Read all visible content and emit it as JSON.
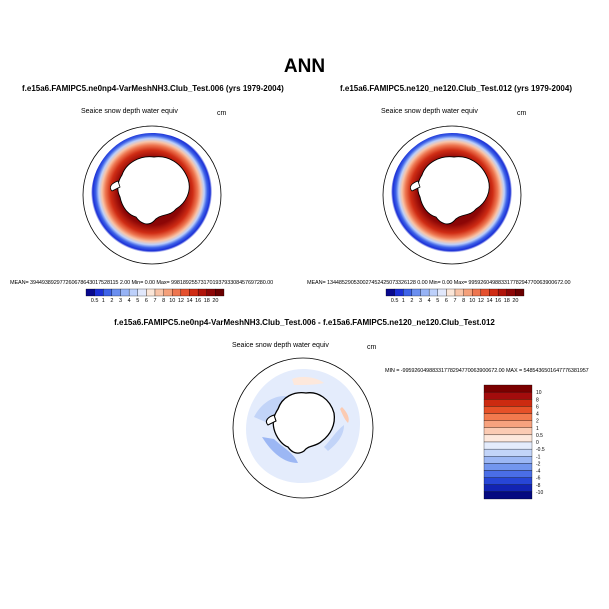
{
  "figure": {
    "title": "ANN"
  },
  "panels": [
    {
      "case_title": "f.e15a6.FAMIPC5.ne0np4-VarMeshNH3.Club_Test.006 (yrs 1979-2004)",
      "variable": "Seaice snow depth water equiv",
      "units": "cm",
      "stats": "MEAN= 394493892977260678643017528115 2.00  Min=   0.00  Max= 99818925573170193793308457697280.00"
    },
    {
      "case_title": "f.e15a6.FAMIPC5.ne120_ne120.Club_Test.012 (yrs 1979-2004)",
      "variable": "Seaice snow depth water equiv",
      "units": "cm",
      "stats": "MEAN= 134485290530027452425073326128 0.00  Min=   0.00  Max= 99592604988331778294770063900672.00"
    }
  ],
  "difference": {
    "title": "f.e15a6.FAMIPC5.ne0np4-VarMeshNH3.Club_Test.006 - f.e15a6.FAMIPC5.ne120_ne120.Club_Test.012",
    "variable": "Seaice snow depth water equiv",
    "units": "cm",
    "stats": "MIN = -99592604988331778294770063900672.00 MAX = 5485436501647776381957"
  },
  "colorbar_main": {
    "labels": [
      "0.5",
      "1",
      "2",
      "3",
      "4",
      "5",
      "6",
      "7",
      "8",
      "10",
      "12",
      "14",
      "16",
      "18",
      "20"
    ],
    "colors": [
      "#08088e",
      "#1b2fd6",
      "#3e63e8",
      "#6b8ff0",
      "#97b3f5",
      "#bdd0fa",
      "#e1e8fc",
      "#fbe6d8",
      "#f8c4a8",
      "#f4a07a",
      "#ee7650",
      "#e4502e",
      "#cf2c14",
      "#b0140a",
      "#8c0606",
      "#6a0000"
    ]
  },
  "colorbar_diff": {
    "labels": [
      "10",
      "8",
      "6",
      "4",
      "2",
      "1",
      "0.5",
      "0",
      "-0.5",
      "-1",
      "-2",
      "-4",
      "-6",
      "-8",
      "-10"
    ],
    "colors": [
      "#7a0000",
      "#a30c0c",
      "#cc2a10",
      "#e65128",
      "#f27a4e",
      "#f7a27e",
      "#fbcbb3",
      "#fde8dc",
      "#e4ecfc",
      "#c2d4f8",
      "#9cb7f4",
      "#7396ee",
      "#4a6ee6",
      "#2746d6",
      "#1224b3",
      "#050a80"
    ]
  },
  "icons": {
    "south_polar_map": "antarctica-stereographic-map"
  }
}
